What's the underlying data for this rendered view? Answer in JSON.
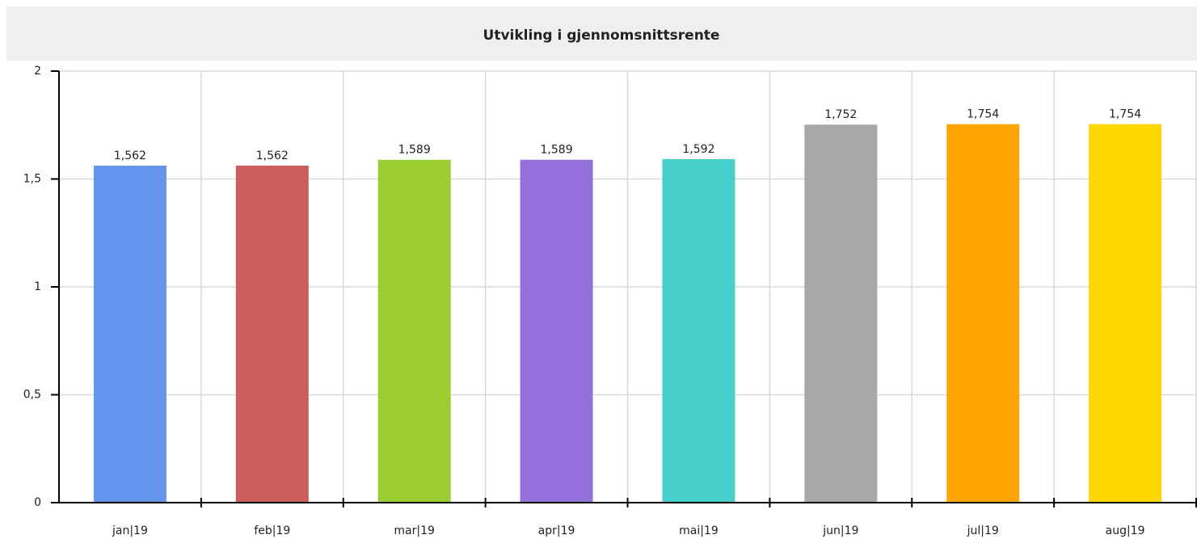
{
  "chart_data": {
    "type": "bar",
    "title": "Utvikling i gjennomsnittsrente",
    "categories": [
      "jan|19",
      "feb|19",
      "mar|19",
      "apr|19",
      "mai|19",
      "jun|19",
      "jul|19",
      "aug|19"
    ],
    "values": [
      1.562,
      1.562,
      1.589,
      1.589,
      1.592,
      1.752,
      1.754,
      1.754
    ],
    "value_labels": [
      "1,562",
      "1,562",
      "1,589",
      "1,589",
      "1,592",
      "1,752",
      "1,754",
      "1,754"
    ],
    "colors": [
      "#6495ed",
      "#cd5c5c",
      "#9acd32",
      "#9370db",
      "#48d1cc",
      "#a9a9a9",
      "#ffa500",
      "#ffd700"
    ],
    "ylim": [
      0,
      2
    ],
    "yticks": [
      0,
      {
        "value": 0.5,
        "label": "0,5"
      },
      1,
      {
        "value": 1.5,
        "label": "1,5"
      },
      2
    ],
    "grid": true
  }
}
